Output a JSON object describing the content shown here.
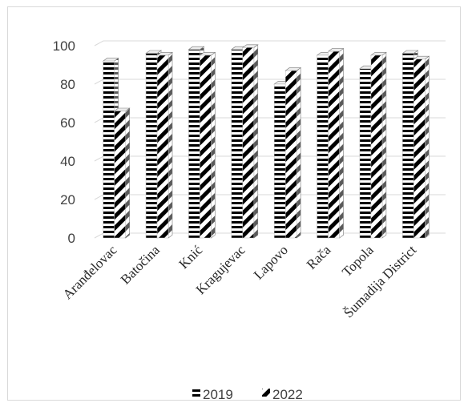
{
  "chart_data": {
    "type": "bar",
    "title": "",
    "xlabel": "",
    "ylabel": "",
    "categories": [
      "Aranđelovac",
      "Batočina",
      "Knić",
      "Kragujevac",
      "Lapovo",
      "Rača",
      "Topola",
      "Šumadija District"
    ],
    "series": [
      {
        "name": "2019",
        "values": [
          92,
          96,
          98,
          98,
          80,
          95,
          88,
          96
        ]
      },
      {
        "name": "2022",
        "values": [
          66,
          95,
          95,
          99,
          87,
          97,
          95,
          93
        ]
      }
    ],
    "ylim": [
      0,
      100
    ],
    "yticks": [
      0,
      20,
      40,
      60,
      80,
      100
    ],
    "grid": true,
    "legend_position": "bottom",
    "style": "3d-column",
    "series_patterns": [
      "horizontal-stripes",
      "diagonal-stripes"
    ],
    "colors": {
      "ink": "#000000",
      "grid": "#d9d9d9",
      "side": "#9a9a9a",
      "top": "#ededed"
    }
  }
}
